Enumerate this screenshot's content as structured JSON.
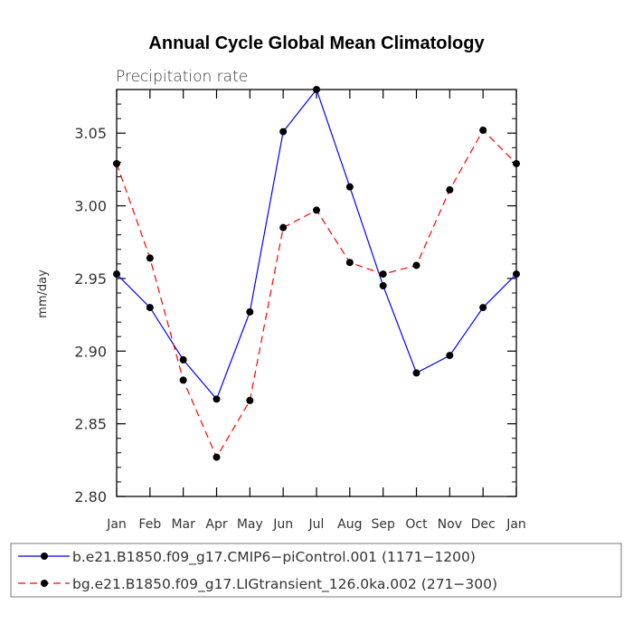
{
  "chart_data": {
    "type": "line",
    "title": "Annual Cycle Global Mean Climatology",
    "subtitle": "Precipitation rate",
    "xlabel": "",
    "ylabel": "mm/day",
    "categories": [
      "Jan",
      "Feb",
      "Mar",
      "Apr",
      "May",
      "Jun",
      "Jul",
      "Aug",
      "Sep",
      "Oct",
      "Nov",
      "Dec",
      "Jan"
    ],
    "ylim": [
      2.8,
      3.08
    ],
    "yticks": [
      "2.80",
      "2.85",
      "2.90",
      "2.95",
      "3.00",
      "3.05"
    ],
    "ytick_values": [
      2.8,
      2.85,
      2.9,
      2.95,
      3.0,
      3.05
    ],
    "legend_position": "bottom",
    "series": [
      {
        "name": "b.e21.B1850.f09_g17.CMIP6−piControl.001 (1171−1200)",
        "color": "#0000ff",
        "dash": "solid",
        "values": [
          2.953,
          2.93,
          2.894,
          2.867,
          2.927,
          3.051,
          3.08,
          3.013,
          2.945,
          2.885,
          2.897,
          2.93,
          2.953
        ]
      },
      {
        "name": "bg.e21.B1850.f09_g17.LIGtransient_126.0ka.002 (271−300)",
        "color": "#ff0000",
        "dash": "dashed",
        "values": [
          3.029,
          2.964,
          2.88,
          2.827,
          2.866,
          2.985,
          2.997,
          2.961,
          2.953,
          2.959,
          3.011,
          3.052,
          3.029
        ]
      }
    ]
  }
}
